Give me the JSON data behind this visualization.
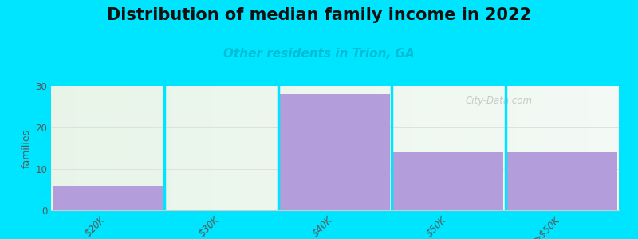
{
  "title": "Distribution of median family income in 2022",
  "subtitle": "Other residents in Trion, GA",
  "categories": [
    "$20K",
    "$30K",
    "$40K",
    "$50K",
    ">$50K"
  ],
  "values": [
    6,
    0,
    28,
    14,
    14
  ],
  "bar_color": "#b39ddb",
  "background_color": "#00e5ff",
  "ylabel": "families",
  "ylim": [
    0,
    30
  ],
  "yticks": [
    0,
    10,
    20,
    30
  ],
  "title_fontsize": 15,
  "subtitle_fontsize": 11,
  "subtitle_color": "#00bcd4",
  "watermark": "City-Data.com"
}
